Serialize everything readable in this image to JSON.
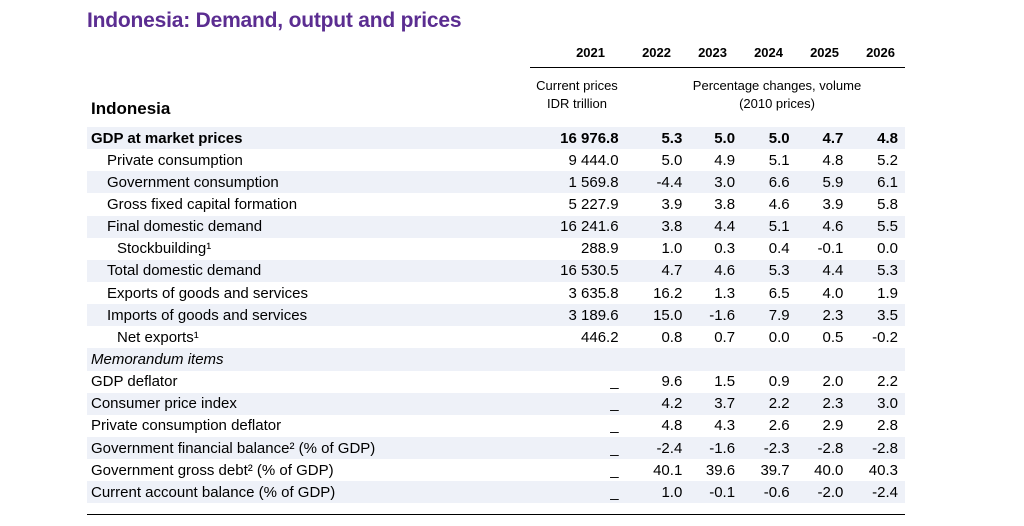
{
  "title": "Indonesia: Demand, output and prices",
  "years": [
    "2021",
    "2022",
    "2023",
    "2024",
    "2025",
    "2026"
  ],
  "sub_header_current": "Current prices IDR trillion",
  "sub_header_current_line1": "Current prices",
  "sub_header_current_line2": "IDR trillion",
  "sub_header_pct_line1": "Percentage changes, volume",
  "sub_header_pct_line2": "(2010 prices)",
  "country": "Indonesia",
  "rows": [
    {
      "label": "GDP at market prices",
      "values": [
        "16 976.8",
        "5.3",
        "5.0",
        "5.0",
        "4.7",
        "4.8"
      ]
    },
    {
      "label": "Private consumption",
      "values": [
        "9 444.0",
        "5.0",
        "4.9",
        "5.1",
        "4.8",
        "5.2"
      ]
    },
    {
      "label": "Government consumption",
      "values": [
        "1 569.8",
        "-4.4",
        "3.0",
        "6.6",
        "5.9",
        "6.1"
      ]
    },
    {
      "label": "Gross fixed capital formation",
      "values": [
        "5 227.9",
        "3.9",
        "3.8",
        "4.6",
        "3.9",
        "5.8"
      ]
    },
    {
      "label": "Final domestic demand",
      "values": [
        "16 241.6",
        "3.8",
        "4.4",
        "5.1",
        "4.6",
        "5.5"
      ]
    },
    {
      "label": "Stockbuilding¹",
      "values": [
        "288.9",
        "1.0",
        "0.3",
        "0.4",
        "-0.1",
        "0.0"
      ]
    },
    {
      "label": "Total domestic demand",
      "values": [
        "16 530.5",
        "4.7",
        "4.6",
        "5.3",
        "4.4",
        "5.3"
      ]
    },
    {
      "label": "Exports of goods and services",
      "values": [
        "3 635.8",
        "16.2",
        "1.3",
        "6.5",
        "4.0",
        "1.9"
      ]
    },
    {
      "label": "Imports of goods and services",
      "values": [
        "3 189.6",
        "15.0",
        "-1.6",
        "7.9",
        "2.3",
        "3.5"
      ]
    },
    {
      "label": "Net exports¹",
      "values": [
        "446.2",
        "0.8",
        "0.7",
        "0.0",
        "0.5",
        "-0.2"
      ]
    },
    {
      "label": "Memorandum items",
      "values": [
        "",
        "",
        "",
        "",
        "",
        ""
      ]
    },
    {
      "label": "GDP deflator",
      "values": [
        "_",
        "9.6",
        "1.5",
        "0.9",
        "2.0",
        "2.2"
      ]
    },
    {
      "label": "Consumer price index",
      "values": [
        "_",
        "4.2",
        "3.7",
        "2.2",
        "2.3",
        "3.0"
      ]
    },
    {
      "label": "Private consumption deflator",
      "values": [
        "_",
        "4.8",
        "4.3",
        "2.6",
        "2.9",
        "2.8"
      ]
    },
    {
      "label": "Government financial balance² (% of GDP)",
      "values": [
        "_",
        "-2.4",
        "-1.6",
        "-2.3",
        "-2.8",
        "-2.8"
      ]
    },
    {
      "label": "Government gross debt² (% of GDP)",
      "values": [
        "_",
        "40.1",
        "39.6",
        "39.7",
        "40.0",
        "40.3"
      ]
    },
    {
      "label": "Current account balance (% of GDP)",
      "values": [
        "_",
        "1.0",
        "-0.1",
        "-0.6",
        "-2.0",
        "-2.4"
      ]
    }
  ]
}
